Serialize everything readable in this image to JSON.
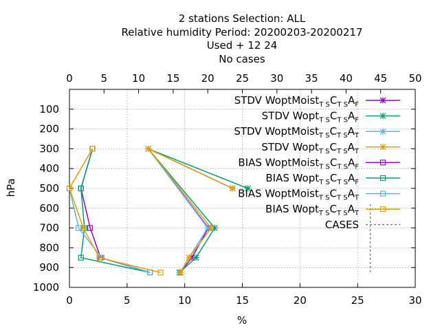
{
  "chart_data": {
    "type": "line",
    "title": [
      "2 stations Selection: ALL",
      "Relative humidity  Period: 20200203-20200217",
      "Used   + 12 24",
      "No cases"
    ],
    "xlabel": "%",
    "ylabel": "hPa",
    "x_bottom": {
      "min": 0,
      "max": 30,
      "ticks": [
        0,
        5,
        10,
        15,
        20,
        25,
        30
      ]
    },
    "x_top": {
      "min": 0,
      "max": 50,
      "ticks": [
        0,
        5,
        10,
        15,
        20,
        25,
        30,
        35,
        40,
        45,
        50
      ]
    },
    "y": {
      "min": 1000,
      "max": 0,
      "reversed": true,
      "ticks": [
        100,
        200,
        300,
        400,
        500,
        600,
        700,
        800,
        900,
        1000
      ]
    },
    "grid": true,
    "legend_position": "top-right",
    "series": [
      {
        "name_main": "STDV WoptMoist",
        "sub1": "T S",
        "mid": "C",
        "sub2": "T S",
        "end": "A",
        "sub3": "F",
        "color": "#9400d3",
        "marker": "x-star",
        "points": [
          {
            "x": 23.6,
            "y": 500
          },
          {
            "x": 11.4,
            "y": 300
          },
          {
            "x": 20.1,
            "y": 700
          },
          {
            "x": 17.7,
            "y": 850
          },
          {
            "x": 16.0,
            "y": 925
          }
        ]
      },
      {
        "name_main": "STDV Wopt",
        "sub1": "T S",
        "mid": "C",
        "sub2": "T S",
        "end": "A",
        "sub3": "F",
        "color": "#009e73",
        "marker": "x-star",
        "points": [
          {
            "x": 25.8,
            "y": 500
          },
          {
            "x": 11.4,
            "y": 300
          },
          {
            "x": 21.0,
            "y": 700
          },
          {
            "x": 18.3,
            "y": 850
          },
          {
            "x": 15.9,
            "y": 925
          }
        ]
      },
      {
        "name_main": "STDV WoptMoist",
        "sub1": "T S",
        "mid": "C",
        "sub2": "T S",
        "end": "A",
        "sub3": "T",
        "color": "#56b4e9",
        "marker": "x-star",
        "points": [
          {
            "x": 23.6,
            "y": 500
          },
          {
            "x": 11.4,
            "y": 300
          },
          {
            "x": 20.0,
            "y": 700
          },
          {
            "x": 17.3,
            "y": 850
          },
          {
            "x": 16.0,
            "y": 925
          }
        ]
      },
      {
        "name_main": "STDV Wopt",
        "sub1": "T S",
        "mid": "C",
        "sub2": "T S",
        "end": "A",
        "sub3": "T",
        "color": "#e69f00",
        "marker": "x-star",
        "points": [
          {
            "x": 23.6,
            "y": 500
          },
          {
            "x": 11.4,
            "y": 300
          },
          {
            "x": 20.5,
            "y": 700
          },
          {
            "x": 17.3,
            "y": 850
          },
          {
            "x": 16.1,
            "y": 925
          }
        ]
      },
      {
        "name_main": "BIAS WoptMoist",
        "sub1": "T S",
        "mid": "C",
        "sub2": "T S",
        "end": "A",
        "sub3": "F",
        "color": "#9400d3",
        "marker": "square",
        "points": [
          {
            "x": 2.0,
            "y": 300
          },
          {
            "x": 1.0,
            "y": 500
          },
          {
            "x": 1.8,
            "y": 700
          },
          {
            "x": 2.7,
            "y": 850
          },
          {
            "x": 7.0,
            "y": 925
          }
        ]
      },
      {
        "name_main": "BIAS Wopt",
        "sub1": "T S",
        "mid": "C",
        "sub2": "T S",
        "end": "A",
        "sub3": "F",
        "color": "#009e73",
        "marker": "square",
        "points": [
          {
            "x": 2.0,
            "y": 300
          },
          {
            "x": 1.0,
            "y": 500
          },
          {
            "x": 1.3,
            "y": 700
          },
          {
            "x": 1.0,
            "y": 850
          },
          {
            "x": 7.0,
            "y": 925
          }
        ]
      },
      {
        "name_main": "BIAS WoptMoist",
        "sub1": "T S",
        "mid": "C",
        "sub2": "T S",
        "end": "A",
        "sub3": "T",
        "color": "#56b4e9",
        "marker": "square",
        "points": [
          {
            "x": 2.0,
            "y": 300
          },
          {
            "x": 0.0,
            "y": 500
          },
          {
            "x": 0.8,
            "y": 700
          },
          {
            "x": 2.8,
            "y": 850
          },
          {
            "x": 7.0,
            "y": 925
          }
        ]
      },
      {
        "name_main": "BIAS Wopt",
        "sub1": "T S",
        "mid": "C",
        "sub2": "T S",
        "end": "A",
        "sub3": "T",
        "color": "#e69f00",
        "marker": "square",
        "points": [
          {
            "x": 2.0,
            "y": 300
          },
          {
            "x": 0.0,
            "y": 500
          },
          {
            "x": 1.2,
            "y": 700
          },
          {
            "x": 2.6,
            "y": 850
          },
          {
            "x": 7.9,
            "y": 925
          }
        ]
      }
    ],
    "cases": {
      "name": "CASES",
      "color": "#808080",
      "top_axis_x": 43.5,
      "y_from": 580,
      "y_to": 925
    }
  }
}
